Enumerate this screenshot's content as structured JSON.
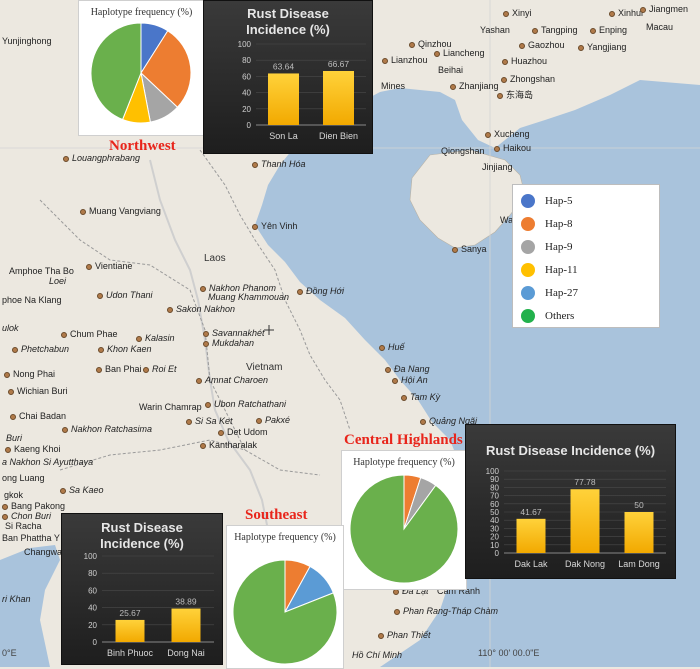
{
  "map": {
    "colors": {
      "land": "#ece8e0",
      "sea": "#a9c3dc",
      "border": "#9a9a9a",
      "river": "#cfcfcf",
      "accent_region": "#e8251b"
    },
    "countries": [
      {
        "id": "laos",
        "text": "Laos"
      },
      {
        "id": "vietnam",
        "text": "Vietnam"
      }
    ],
    "places": [
      {
        "id": "yunjinghong",
        "text": "Yunjinghong",
        "italic": false,
        "dot": false
      },
      {
        "id": "xinyi",
        "text": "Xinyi",
        "italic": false,
        "dot": true
      },
      {
        "id": "xinhui",
        "text": "Xinhui",
        "italic": false,
        "dot": true
      },
      {
        "id": "jiangmen",
        "text": "Jiangmen",
        "italic": false,
        "dot": true
      },
      {
        "id": "yashan",
        "text": "Yashan",
        "italic": false,
        "dot": false
      },
      {
        "id": "tangping",
        "text": "Tangping",
        "italic": false,
        "dot": true
      },
      {
        "id": "enping",
        "text": "Enping",
        "italic": false,
        "dot": true
      },
      {
        "id": "macau",
        "text": "Macau",
        "italic": false,
        "dot": false
      },
      {
        "id": "qinzhou",
        "text": "Qinzhou",
        "italic": false,
        "dot": true
      },
      {
        "id": "gaozhou",
        "text": "Gaozhou",
        "italic": false,
        "dot": true
      },
      {
        "id": "yangjiang",
        "text": "Yangjiang",
        "italic": false,
        "dot": true
      },
      {
        "id": "liancheng",
        "text": "Liancheng",
        "italic": false,
        "dot": true
      },
      {
        "id": "lianzhou",
        "text": "Lianzhou",
        "italic": false,
        "dot": true
      },
      {
        "id": "beihai",
        "text": "Beihai",
        "italic": false,
        "dot": false
      },
      {
        "id": "huazhou",
        "text": "Huazhou",
        "italic": false,
        "dot": true
      },
      {
        "id": "zhongshan",
        "text": "Zhongshan",
        "italic": false,
        "dot": true
      },
      {
        "id": "mines",
        "text": "Mines",
        "italic": false,
        "dot": false
      },
      {
        "id": "zhanjiang",
        "text": "Zhanjiang",
        "italic": false,
        "dot": true
      },
      {
        "id": "dongdao",
        "text": "东海岛",
        "italic": false,
        "dot": true
      },
      {
        "id": "xucheng",
        "text": "Xucheng",
        "italic": false,
        "dot": true
      },
      {
        "id": "qiongshan",
        "text": "Qiongshan",
        "italic": false,
        "dot": false
      },
      {
        "id": "haikou",
        "text": "Haikou",
        "italic": false,
        "dot": true
      },
      {
        "id": "jinjiang",
        "text": "Jinjiang",
        "italic": false,
        "dot": false
      },
      {
        "id": "wa",
        "text": "Wa",
        "italic": false,
        "dot": false
      },
      {
        "id": "sanya",
        "text": "Sanya",
        "italic": false,
        "dot": true
      },
      {
        "id": "luangprabang",
        "text": "Louangphrabang",
        "italic": true,
        "dot": true
      },
      {
        "id": "thanhhoa",
        "text": "Thanh Hóa",
        "italic": true,
        "dot": true
      },
      {
        "id": "muangvangviang",
        "text": "Muang Vangviang",
        "italic": false,
        "dot": true
      },
      {
        "id": "yenvinh",
        "text": "Yên Vinh",
        "italic": false,
        "dot": true
      },
      {
        "id": "amphoe",
        "text": "Amphoe Tha Bo",
        "italic": false,
        "dot": false
      },
      {
        "id": "vientiane",
        "text": "Vientiane",
        "italic": false,
        "dot": true
      },
      {
        "id": "loei",
        "text": "Loei",
        "italic": true,
        "dot": false
      },
      {
        "id": "phoenaklang",
        "text": "phoe Na Klang",
        "italic": false,
        "dot": false
      },
      {
        "id": "udonthani",
        "text": "Udon Thani",
        "italic": true,
        "dot": true
      },
      {
        "id": "nakhonphanom",
        "text": "Nakhon Phanom",
        "italic": true,
        "dot": true
      },
      {
        "id": "muangkhammouan",
        "text": "Muang Khammouan",
        "italic": true,
        "dot": false
      },
      {
        "id": "donghoi",
        "text": "Đồng Hới",
        "italic": true,
        "dot": true
      },
      {
        "id": "sakonnakhon",
        "text": "Sakon Nakhon",
        "italic": true,
        "dot": true
      },
      {
        "id": "ulok",
        "text": "ulok",
        "italic": true,
        "dot": false
      },
      {
        "id": "chumphae",
        "text": "Chum Phae",
        "italic": false,
        "dot": true
      },
      {
        "id": "kalasin",
        "text": "Kalasin",
        "italic": true,
        "dot": true
      },
      {
        "id": "savannakhet",
        "text": "Savannakhét",
        "italic": true,
        "dot": true
      },
      {
        "id": "phetchabun",
        "text": "Phetchabun",
        "italic": true,
        "dot": true
      },
      {
        "id": "khonkaen",
        "text": "Khon Kaen",
        "italic": true,
        "dot": true
      },
      {
        "id": "mukdahan",
        "text": "Mukdahan",
        "italic": true,
        "dot": true
      },
      {
        "id": "hue",
        "text": "Huế",
        "italic": true,
        "dot": true
      },
      {
        "id": "nongphai",
        "text": "Nong Phai",
        "italic": false,
        "dot": true
      },
      {
        "id": "banphai",
        "text": "Ban Phai",
        "italic": false,
        "dot": true
      },
      {
        "id": "roiet",
        "text": "Roi Et",
        "italic": true,
        "dot": true
      },
      {
        "id": "amnatcharoen",
        "text": "Amnat Charoen",
        "italic": true,
        "dot": true
      },
      {
        "id": "danang",
        "text": "Đa Nang",
        "italic": true,
        "dot": true
      },
      {
        "id": "hoian",
        "text": "Hội An",
        "italic": true,
        "dot": true
      },
      {
        "id": "wichianburi",
        "text": "Wichian Buri",
        "italic": false,
        "dot": true
      },
      {
        "id": "tamky",
        "text": "Tam Kỳ",
        "italic": true,
        "dot": true
      },
      {
        "id": "chaibadan",
        "text": "Chai Badan",
        "italic": false,
        "dot": true
      },
      {
        "id": "warinchamrap",
        "text": "Warin Chamrap",
        "italic": false,
        "dot": false
      },
      {
        "id": "ubon",
        "text": "Ubon Ratchathani",
        "italic": true,
        "dot": true
      },
      {
        "id": "sisaket",
        "text": "Si Sa Ket",
        "italic": true,
        "dot": true
      },
      {
        "id": "pakxe",
        "text": "Pakxé",
        "italic": true,
        "dot": true
      },
      {
        "id": "quangngai",
        "text": "Quảng Ngãi",
        "italic": true,
        "dot": true
      },
      {
        "id": "nakhonratchasima",
        "text": "Nakhon Ratchasima",
        "italic": true,
        "dot": true
      },
      {
        "id": "detudom",
        "text": "Det Udom",
        "italic": false,
        "dot": true
      },
      {
        "id": "buri",
        "text": "Buri",
        "italic": true,
        "dot": false
      },
      {
        "id": "kaengkhoi",
        "text": "Kaeng Khoi",
        "italic": false,
        "dot": true
      },
      {
        "id": "kantharalak",
        "text": "Kantharalak",
        "italic": false,
        "dot": true
      },
      {
        "id": "ayutthaya",
        "text": "a Nakhon Si Ayutthaya",
        "italic": true,
        "dot": false
      },
      {
        "id": "ongluang",
        "text": "ong Luang",
        "italic": false,
        "dot": false
      },
      {
        "id": "sakaeo",
        "text": "Sa Kaeo",
        "italic": true,
        "dot": true
      },
      {
        "id": "gkok",
        "text": "gkok",
        "italic": false,
        "dot": false
      },
      {
        "id": "bangpakong",
        "text": "Bang Pakong",
        "italic": false,
        "dot": true
      },
      {
        "id": "chonburi",
        "text": "Chon Buri",
        "italic": true,
        "dot": true
      },
      {
        "id": "siracha",
        "text": "Si Racha",
        "italic": false,
        "dot": false
      },
      {
        "id": "banphattha",
        "text": "Ban Phattha Y",
        "italic": false,
        "dot": false
      },
      {
        "id": "changwa",
        "text": "Changwa",
        "italic": false,
        "dot": false
      },
      {
        "id": "rikhan",
        "text": "ri Khan",
        "italic": true,
        "dot": false
      },
      {
        "id": "camranh",
        "text": "Cam Ranh",
        "italic": false,
        "dot": false
      },
      {
        "id": "dalat",
        "text": "Đà Lạt",
        "italic": true,
        "dot": true
      },
      {
        "id": "phanrang",
        "text": "Phan Rang-Tháp Chàm",
        "italic": true,
        "dot": true
      },
      {
        "id": "phanthiet",
        "text": "Phan Thiết",
        "italic": true,
        "dot": true
      },
      {
        "id": "hochiminh",
        "text": "Hồ Chí Minh",
        "italic": true,
        "dot": false
      }
    ],
    "coords": [
      {
        "id": "coord-left",
        "text": "0°E"
      },
      {
        "id": "coord-right",
        "text": "110° 00' 00.0\"E"
      }
    ],
    "regions": [
      {
        "id": "northwest",
        "text": "Northwest"
      },
      {
        "id": "central",
        "text": "Central Highlands"
      },
      {
        "id": "southeast",
        "text": "Southeast"
      }
    ]
  },
  "legend": {
    "items": [
      {
        "label": "Hap-5",
        "color": "#4a76c9"
      },
      {
        "label": "Hap-8",
        "color": "#ed7d31"
      },
      {
        "label": "Hap-9",
        "color": "#a5a5a5"
      },
      {
        "label": "Hap-11",
        "color": "#ffc000"
      },
      {
        "label": "Hap-27",
        "color": "#5b9bd5"
      },
      {
        "label": "Others",
        "color": "#22b14c"
      }
    ]
  },
  "chart_data": [
    {
      "id": "pie-northwest",
      "type": "pie",
      "title": "Haplotype frequency (%)",
      "labels": [
        "Hap-5",
        "Hap-8",
        "Hap-9",
        "Hap-11",
        "Hap-27",
        "Others"
      ],
      "values": [
        9,
        28,
        10,
        9,
        0,
        44
      ],
      "colors": [
        "#4a76c9",
        "#ed7d31",
        "#a5a5a5",
        "#ffc000",
        "#5b9bd5",
        "#6ab04c"
      ]
    },
    {
      "id": "bar-northwest",
      "type": "bar",
      "title": "Rust Disease Incidence (%)",
      "categories": [
        "Son La",
        "Dien Bien"
      ],
      "values": [
        63.64,
        66.67
      ],
      "value_labels": [
        "63.64",
        "66.67"
      ],
      "ylim": [
        0,
        100
      ],
      "yticks": [
        0,
        20,
        40,
        60,
        80,
        100
      ]
    },
    {
      "id": "pie-central",
      "type": "pie",
      "title": "Haplotype frequency (%)",
      "labels": [
        "Hap-5",
        "Hap-8",
        "Hap-9",
        "Hap-11",
        "Hap-27",
        "Others"
      ],
      "values": [
        0,
        5,
        5,
        0,
        0,
        90
      ],
      "colors": [
        "#4a76c9",
        "#ed7d31",
        "#a5a5a5",
        "#ffc000",
        "#5b9bd5",
        "#6ab04c"
      ]
    },
    {
      "id": "bar-central",
      "type": "bar",
      "title": "Rust Disease Incidence (%)",
      "categories": [
        "Dak Lak",
        "Dak Nong",
        "Lam Dong"
      ],
      "values": [
        41.67,
        77.78,
        50
      ],
      "value_labels": [
        "41.67",
        "77.78",
        "50"
      ],
      "ylim": [
        0,
        100
      ],
      "yticks": [
        0,
        10,
        20,
        30,
        40,
        50,
        60,
        70,
        80,
        90,
        100
      ]
    },
    {
      "id": "pie-southeast",
      "type": "pie",
      "title": "Haplotype frequency (%)",
      "labels": [
        "Hap-5",
        "Hap-8",
        "Hap-9",
        "Hap-11",
        "Hap-27",
        "Others"
      ],
      "values": [
        0,
        8,
        0,
        0,
        11,
        81
      ],
      "colors": [
        "#4a76c9",
        "#ed7d31",
        "#a5a5a5",
        "#ffc000",
        "#5b9bd5",
        "#6ab04c"
      ]
    },
    {
      "id": "bar-southeast",
      "type": "bar",
      "title": "Rust Disease Incidence (%)",
      "categories": [
        "Binh Phuoc",
        "Dong Nai"
      ],
      "values": [
        25.67,
        38.89
      ],
      "value_labels": [
        "25.67",
        "38.89"
      ],
      "ylim": [
        0,
        100
      ],
      "yticks": [
        0,
        20,
        40,
        60,
        80,
        100
      ]
    }
  ]
}
